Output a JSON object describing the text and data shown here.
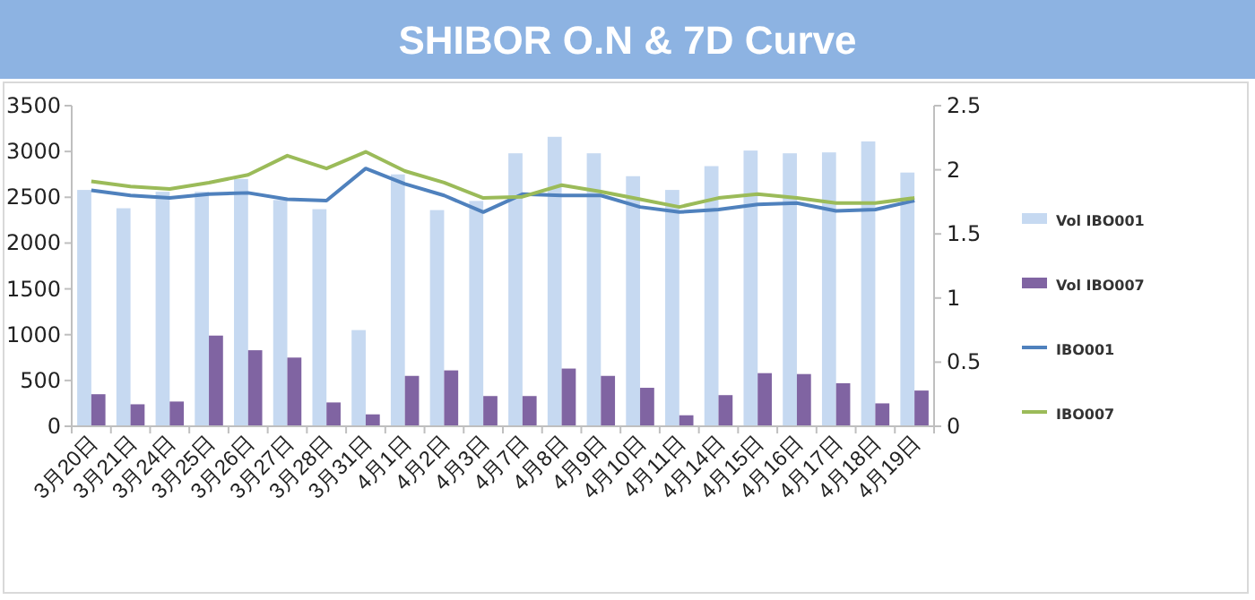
{
  "chart_data": {
    "type": "bar",
    "title": "SHIBOR O.N & 7D Curve",
    "categories": [
      "3月20日",
      "3月21日",
      "3月24日",
      "3月25日",
      "3月26日",
      "3月27日",
      "3月28日",
      "3月31日",
      "4月1日",
      "4月2日",
      "4月3日",
      "4月7日",
      "4月8日",
      "4月9日",
      "4月10日",
      "4月11日",
      "4月14日",
      "4月15日",
      "4月16日",
      "4月17日",
      "4月18日",
      "4月19日"
    ],
    "series": [
      {
        "name": "Vol IBO001",
        "color": "#c6d9f1",
        "values": [
          2580,
          2380,
          2560,
          2560,
          2700,
          2470,
          2370,
          1050,
          2750,
          2360,
          2460,
          2980,
          3160,
          2980,
          2730,
          2580,
          2840,
          3010,
          2980,
          2990,
          3110,
          2770
        ]
      },
      {
        "name": "Vol IBO007",
        "color": "#8064a2",
        "values": [
          350,
          240,
          270,
          990,
          830,
          750,
          260,
          130,
          550,
          610,
          330,
          330,
          630,
          550,
          420,
          120,
          340,
          580,
          570,
          470,
          250,
          390
        ]
      },
      {
        "name": "IBO001",
        "type": "line",
        "axis": "y2",
        "color": "#4f81bd",
        "values": [
          1.84,
          1.8,
          1.78,
          1.81,
          1.82,
          1.77,
          1.76,
          2.01,
          1.89,
          1.8,
          1.67,
          1.81,
          1.8,
          1.8,
          1.71,
          1.67,
          1.69,
          1.73,
          1.74,
          1.68,
          1.69,
          1.76
        ]
      },
      {
        "name": "IBO007",
        "type": "line",
        "axis": "y2",
        "color": "#9bbb59",
        "values": [
          1.91,
          1.87,
          1.85,
          1.9,
          1.96,
          2.11,
          2.01,
          2.14,
          1.99,
          1.9,
          1.78,
          1.79,
          1.88,
          1.83,
          1.77,
          1.71,
          1.78,
          1.81,
          1.78,
          1.74,
          1.74,
          1.78
        ]
      }
    ],
    "ylim": [
      0,
      3500
    ],
    "yticks": [
      0,
      500,
      1000,
      1500,
      2000,
      2500,
      3000,
      3500
    ],
    "y2lim": [
      0,
      2.5
    ],
    "y2ticks": [
      0,
      {
        "value": 0.5,
        "label": "0.5"
      },
      1,
      {
        "value": 1.5,
        "label": "1.5"
      },
      2,
      {
        "value": 2.5,
        "label": "2.5"
      }
    ],
    "grid": false,
    "legend": "right",
    "marker": "none",
    "line_style": "solid"
  }
}
